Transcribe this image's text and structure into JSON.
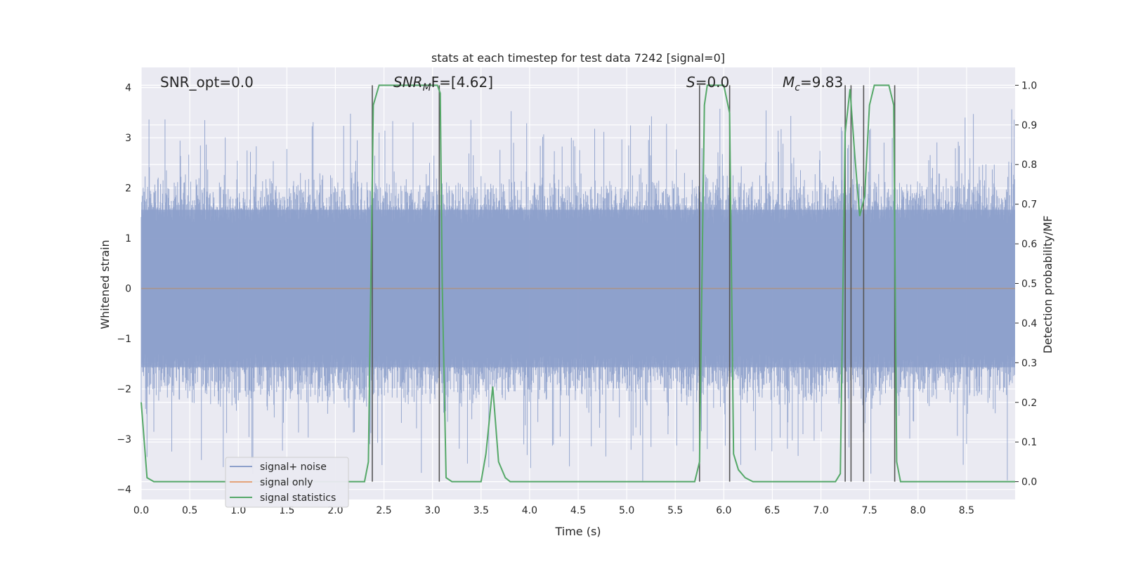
{
  "chart_data": {
    "type": "line",
    "title": "stats at each timestep for test data 7242 [signal=0]",
    "xlabel": "Time (s)",
    "ylabel_left": "Whitened strain",
    "ylabel_right": "Detection probability/MF",
    "xlim": [
      0,
      9.0
    ],
    "ylim_left": [
      -4.2,
      4.4
    ],
    "ylim_right": [
      -0.045,
      1.045
    ],
    "x_ticks": [
      "0.0",
      "0.5",
      "1.0",
      "1.5",
      "2.0",
      "2.5",
      "3.0",
      "3.5",
      "4.0",
      "4.5",
      "5.0",
      "5.5",
      "6.0",
      "6.5",
      "7.0",
      "7.5",
      "8.0",
      "8.5"
    ],
    "y_ticks_left": [
      "4",
      "3",
      "2",
      "1",
      "0",
      "−1",
      "−2",
      "−3",
      "−4"
    ],
    "y_ticks_right": [
      "1.0",
      "0.9",
      "0.8",
      "0.7",
      "0.6",
      "0.5",
      "0.4",
      "0.3",
      "0.2",
      "0.1",
      "0.0"
    ],
    "grid": true,
    "legend_position": "lower-left",
    "annotations": {
      "snr_opt": "SNR_opt=0.0",
      "snr_mf_main": "SNR",
      "snr_mf_sub": "M",
      "snr_mf_tail": "F=[4.62]",
      "s_var": "S",
      "s_tail": "=0.0",
      "mc_var": "M",
      "mc_sub": "c",
      "mc_tail": "=9.83"
    },
    "series": [
      {
        "name": "signal+ noise",
        "color": "#8da0cb",
        "amplitude_envelope": 1.6,
        "max_spike": 3.65,
        "min_spike": -3.85
      },
      {
        "name": "signal only",
        "color": "#e5a47a",
        "values": "zero"
      },
      {
        "name": "signal statistics",
        "color": "#55a868",
        "x": [
          0.0,
          0.06,
          0.13,
          0.2,
          2.3,
          2.34,
          2.39,
          2.45,
          2.8,
          3.05,
          3.08,
          3.1,
          3.14,
          3.2,
          3.5,
          3.55,
          3.62,
          3.68,
          3.75,
          3.8,
          3.9,
          5.7,
          5.75,
          5.78,
          5.8,
          5.83,
          5.9,
          6.0,
          6.06,
          6.1,
          6.15,
          6.22,
          6.3,
          6.4,
          7.15,
          7.2,
          7.25,
          7.3,
          7.35,
          7.4,
          7.45,
          7.5,
          7.55,
          7.7,
          7.75,
          7.78,
          7.82,
          9.0
        ],
        "y": [
          0.2,
          0.01,
          0.0,
          0.0,
          0.0,
          0.05,
          0.95,
          1.0,
          1.0,
          1.0,
          0.98,
          0.5,
          0.01,
          0.0,
          0.0,
          0.07,
          0.24,
          0.05,
          0.01,
          0.0,
          0.0,
          0.0,
          0.05,
          0.6,
          0.95,
          1.0,
          1.0,
          1.0,
          0.93,
          0.07,
          0.03,
          0.01,
          0.0,
          0.0,
          0.0,
          0.02,
          0.88,
          0.99,
          0.82,
          0.67,
          0.72,
          0.95,
          1.0,
          1.0,
          0.95,
          0.05,
          0.0,
          0.0
        ]
      }
    ],
    "vlines": [
      {
        "x": 2.38,
        "color": "#555555"
      },
      {
        "x": 3.07,
        "color": "#555555"
      },
      {
        "x": 5.75,
        "color": "#555555"
      },
      {
        "x": 6.06,
        "color": "#555555"
      },
      {
        "x": 7.25,
        "color": "#555555"
      },
      {
        "x": 7.31,
        "color": "#555555"
      },
      {
        "x": 7.44,
        "color": "#555555"
      },
      {
        "x": 7.76,
        "color": "#555555"
      }
    ],
    "colors": {
      "background": "#eaeaf2",
      "grid": "#ffffff"
    }
  }
}
